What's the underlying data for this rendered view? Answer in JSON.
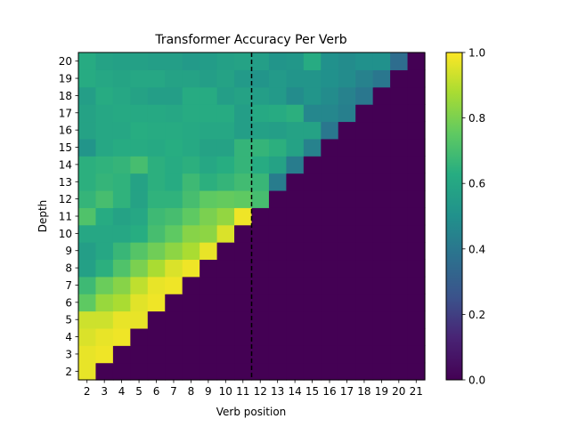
{
  "chart_data": {
    "type": "heatmap",
    "title": "Transformer Accuracy Per Verb",
    "xlabel": "Verb position",
    "ylabel": "Depth",
    "x_categories": [
      "2",
      "3",
      "4",
      "5",
      "6",
      "7",
      "8",
      "9",
      "10",
      "11",
      "12",
      "13",
      "14",
      "15",
      "16",
      "17",
      "18",
      "19",
      "20",
      "21"
    ],
    "y_categories": [
      "2",
      "3",
      "4",
      "5",
      "6",
      "7",
      "8",
      "9",
      "10",
      "11",
      "12",
      "13",
      "14",
      "15",
      "16",
      "17",
      "18",
      "19",
      "20"
    ],
    "colormap": "viridis",
    "vmin": 0.0,
    "vmax": 1.0,
    "colorbar_ticks": [
      "0.0",
      "0.2",
      "0.4",
      "0.6",
      "0.8",
      "1.0"
    ],
    "vline_between_x": [
      "11",
      "12"
    ],
    "rows": [
      {
        "depth": "2",
        "values": [
          0.97
        ]
      },
      {
        "depth": "3",
        "values": [
          0.97,
          0.98
        ]
      },
      {
        "depth": "4",
        "values": [
          0.95,
          0.97,
          0.98
        ]
      },
      {
        "depth": "5",
        "values": [
          0.93,
          0.93,
          0.97,
          0.97
        ]
      },
      {
        "depth": "6",
        "values": [
          0.75,
          0.85,
          0.88,
          0.96,
          0.98
        ]
      },
      {
        "depth": "7",
        "values": [
          0.68,
          0.77,
          0.82,
          0.91,
          0.97,
          0.98
        ]
      },
      {
        "depth": "8",
        "values": [
          0.57,
          0.64,
          0.72,
          0.8,
          0.88,
          0.95,
          0.98
        ]
      },
      {
        "depth": "9",
        "values": [
          0.56,
          0.6,
          0.67,
          0.73,
          0.78,
          0.83,
          0.88,
          0.97
        ]
      },
      {
        "depth": "10",
        "values": [
          0.6,
          0.6,
          0.6,
          0.63,
          0.7,
          0.75,
          0.82,
          0.83,
          0.95
        ]
      },
      {
        "depth": "11",
        "values": [
          0.72,
          0.62,
          0.58,
          0.6,
          0.68,
          0.7,
          0.75,
          0.8,
          0.84,
          0.98
        ]
      },
      {
        "depth": "12",
        "values": [
          0.66,
          0.7,
          0.65,
          0.58,
          0.65,
          0.65,
          0.7,
          0.75,
          0.76,
          0.75,
          0.7
        ]
      },
      {
        "depth": "13",
        "values": [
          0.64,
          0.66,
          0.65,
          0.58,
          0.64,
          0.62,
          0.68,
          0.64,
          0.66,
          0.69,
          0.67,
          0.42
        ]
      },
      {
        "depth": "14",
        "values": [
          0.64,
          0.65,
          0.66,
          0.7,
          0.64,
          0.62,
          0.64,
          0.6,
          0.63,
          0.66,
          0.62,
          0.58,
          0.42
        ]
      },
      {
        "depth": "15",
        "values": [
          0.52,
          0.6,
          0.62,
          0.62,
          0.61,
          0.63,
          0.61,
          0.58,
          0.58,
          0.66,
          0.66,
          0.64,
          0.58,
          0.44
        ]
      },
      {
        "depth": "16",
        "values": [
          0.58,
          0.6,
          0.6,
          0.63,
          0.62,
          0.62,
          0.61,
          0.6,
          0.6,
          0.56,
          0.57,
          0.56,
          0.58,
          0.58,
          0.4
        ]
      },
      {
        "depth": "17",
        "values": [
          0.58,
          0.6,
          0.61,
          0.61,
          0.61,
          0.6,
          0.62,
          0.62,
          0.62,
          0.56,
          0.61,
          0.62,
          0.64,
          0.46,
          0.46,
          0.43
        ]
      },
      {
        "depth": "18",
        "values": [
          0.56,
          0.62,
          0.6,
          0.58,
          0.56,
          0.56,
          0.62,
          0.62,
          0.56,
          0.58,
          0.56,
          0.54,
          0.48,
          0.52,
          0.48,
          0.44,
          0.4
        ]
      },
      {
        "depth": "19",
        "values": [
          0.62,
          0.6,
          0.59,
          0.6,
          0.6,
          0.58,
          0.58,
          0.56,
          0.58,
          0.54,
          0.52,
          0.54,
          0.52,
          0.52,
          0.5,
          0.48,
          0.44,
          0.4
        ]
      },
      {
        "depth": "20",
        "values": [
          0.62,
          0.58,
          0.57,
          0.57,
          0.56,
          0.56,
          0.54,
          0.55,
          0.57,
          0.58,
          0.56,
          0.52,
          0.53,
          0.62,
          0.5,
          0.48,
          0.5,
          0.5,
          0.36
        ]
      }
    ]
  }
}
